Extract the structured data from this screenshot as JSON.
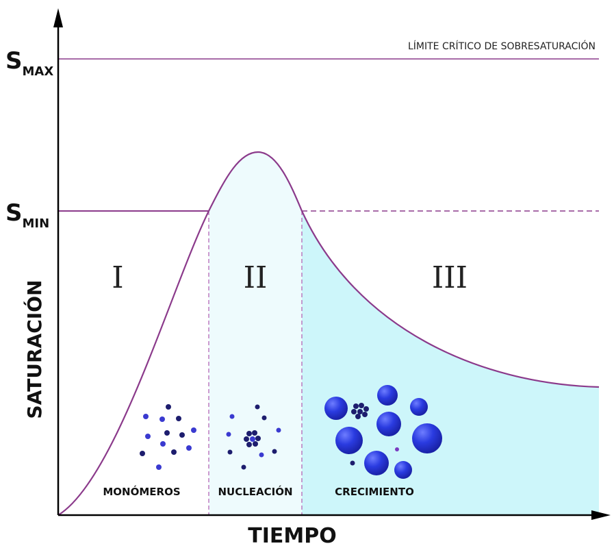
{
  "axes": {
    "y_label": "SATURACIÓN",
    "x_label": "TIEMPO",
    "s_max": {
      "main": "S",
      "sub": "MAX"
    },
    "s_min": {
      "main": "S",
      "sub": "MIN"
    }
  },
  "limit_label": "LÍMITE CRÍTICO DE SOBRESATURACIÓN",
  "regions": [
    {
      "numeral": "I",
      "label": "MONÓMEROS"
    },
    {
      "numeral": "II",
      "label": "NUCLEACIÓN"
    },
    {
      "numeral": "III",
      "label": "CRECIMIENTO"
    }
  ]
}
